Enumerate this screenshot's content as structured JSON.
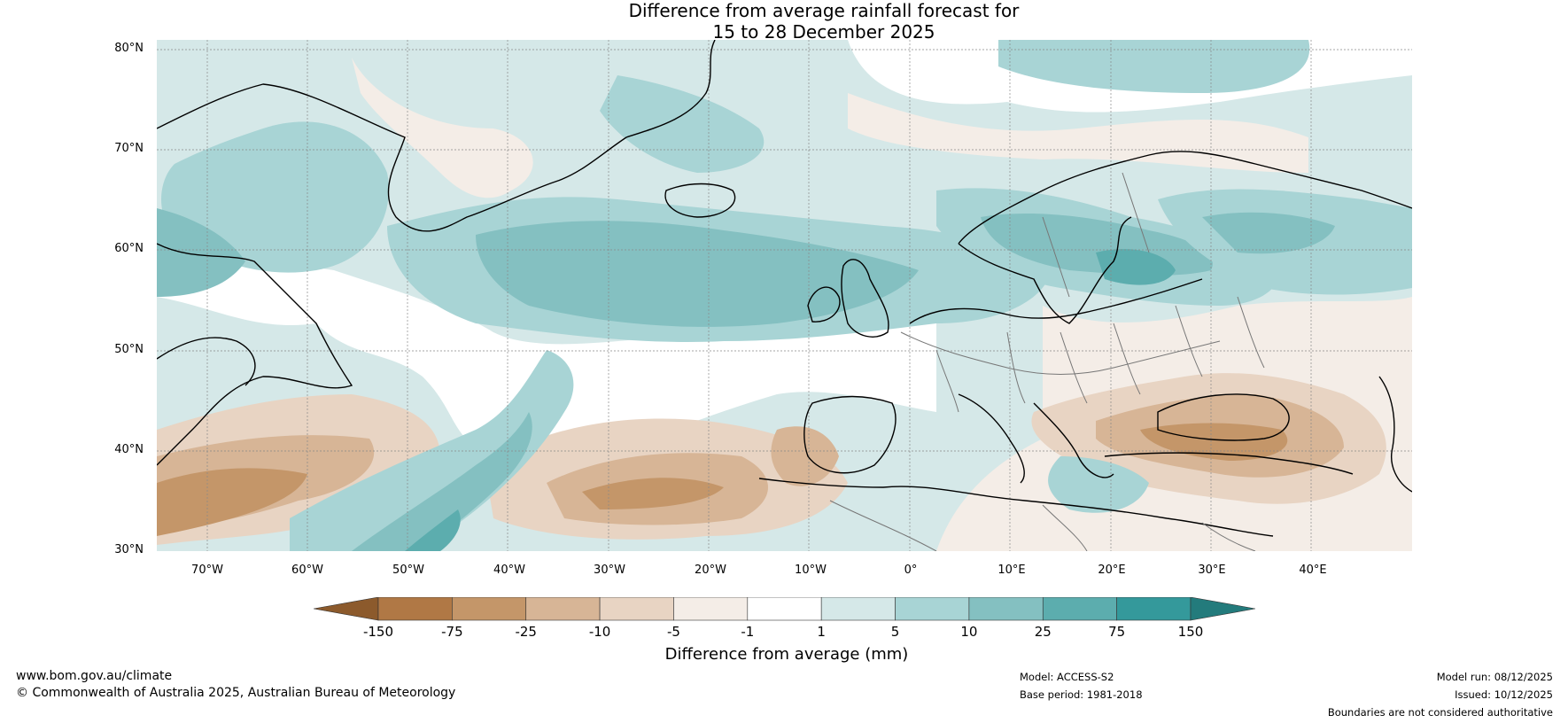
{
  "header": {
    "title_line1": "Difference from average rainfall forecast for",
    "title_line2": "15 to 28 December 2025"
  },
  "map": {
    "region": "North Atlantic and Europe",
    "lat_labels": [
      "80°N",
      "70°N",
      "60°N",
      "50°N",
      "40°N",
      "30°N"
    ],
    "lon_labels": [
      "70°W",
      "60°W",
      "50°W",
      "40°W",
      "30°W",
      "20°W",
      "10°W",
      "0°",
      "10°E",
      "20°E",
      "30°E",
      "40°E"
    ]
  },
  "colorbar": {
    "ticks": [
      "-150",
      "-75",
      "-25",
      "-10",
      "-5",
      "-1",
      "1",
      "5",
      "10",
      "25",
      "75",
      "150"
    ],
    "colors": [
      "#8c5a2c",
      "#b07845",
      "#c49669",
      "#d7b596",
      "#e8d4c3",
      "#f4ede7",
      "#ffffff",
      "#d5e8e8",
      "#a8d4d5",
      "#84c0c1",
      "#5cadae",
      "#34999b",
      "#237b7c"
    ],
    "label": "Difference from average (mm)"
  },
  "footer": {
    "website": "www.bom.gov.au/climate",
    "copyright": "© Commonwealth of Australia 2025, Australian Bureau of Meteorology",
    "model": "Model: ACCESS-S2",
    "base_period": "Base period: 1981-2018",
    "model_run": "Model run: 08/12/2025",
    "issued": "Issued: 10/12/2025",
    "disclaimer": "Boundaries are not considered authoritative"
  }
}
